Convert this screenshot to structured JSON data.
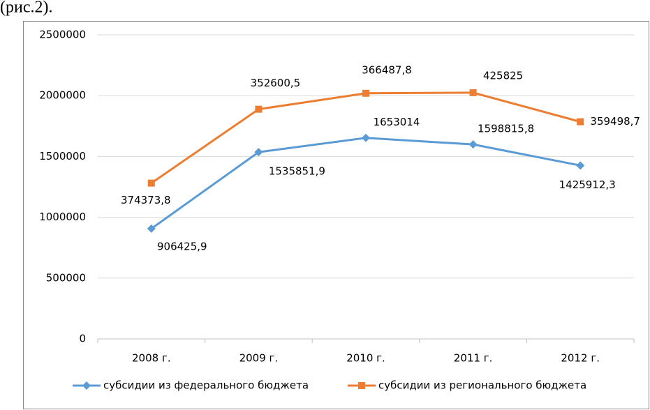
{
  "caption": "(рис.2).",
  "chart_data": {
    "type": "line",
    "stacked": true,
    "categories": [
      "2008 г.",
      "2009 г.",
      "2010 г.",
      "2011 г.",
      "2012 г."
    ],
    "series": [
      {
        "name": "субсидии из федерального бюджета",
        "color": "#5b9bd5",
        "marker": "diamond",
        "values": [
          906425.9,
          1535851.9,
          1653014,
          1598815.8,
          1425912.3
        ],
        "value_labels": [
          "906425,9",
          "1535851,9",
          "1653014",
          "1598815,8",
          "1425912,3"
        ]
      },
      {
        "name": "субсидии из регионального бюджета",
        "color": "#ed7d31",
        "marker": "square",
        "values": [
          374373.8,
          352600.5,
          366487.8,
          425825,
          359498.7
        ],
        "value_labels": [
          "374373,8",
          "352600,5",
          "366487,8",
          "425825",
          "359498,7"
        ]
      }
    ],
    "ylim": [
      0,
      2500000
    ],
    "yticks": [
      0,
      500000,
      1000000,
      1500000,
      2000000,
      2500000
    ],
    "grid": true,
    "legend": "bottom"
  }
}
